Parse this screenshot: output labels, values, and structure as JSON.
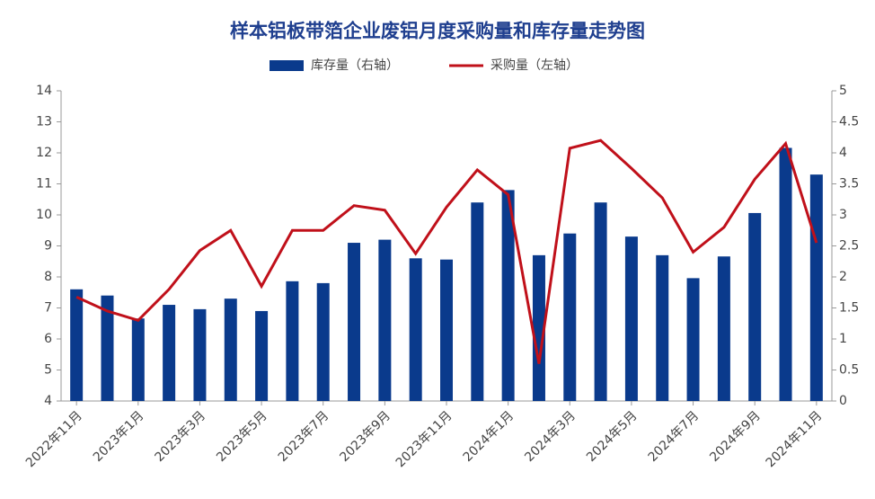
{
  "chart_data": {
    "type": "bar-line",
    "title": "样本铝板带箔企业废铝月度采购量和库存量走势图",
    "categories": [
      "2022年11月",
      null,
      "2023年1月",
      null,
      "2023年3月",
      null,
      "2023年5月",
      null,
      "2023年7月",
      null,
      "2023年9月",
      null,
      "2023年11月",
      null,
      "2024年1月",
      null,
      "2024年3月",
      null,
      "2024年5月",
      null,
      "2024年7月",
      null,
      "2024年9月",
      null,
      "2024年11月"
    ],
    "series": [
      {
        "name": "库存量（右轴）",
        "type": "bar",
        "axis": "y2",
        "color": "#0a3a8c",
        "values": [
          1.8,
          1.7,
          1.33,
          1.55,
          1.48,
          1.65,
          1.45,
          1.93,
          1.9,
          2.55,
          2.6,
          2.3,
          2.28,
          3.2,
          3.4,
          2.35,
          2.7,
          3.2,
          2.65,
          2.35,
          1.98,
          2.33,
          3.03,
          4.08,
          3.65
        ]
      },
      {
        "name": "采购量（左轴）",
        "type": "line",
        "axis": "y",
        "color": "#c0101a",
        "values": [
          7.35,
          6.9,
          6.6,
          7.6,
          8.85,
          9.5,
          7.7,
          9.5,
          9.5,
          10.3,
          10.15,
          8.75,
          10.25,
          11.45,
          10.65,
          5.2,
          12.15,
          12.4,
          11.5,
          10.55,
          8.8,
          9.6,
          11.15,
          12.3,
          9.1
        ]
      }
    ],
    "ylim": [
      4,
      14
    ],
    "yticks": [
      4,
      5,
      6,
      7,
      8,
      9,
      10,
      11,
      12,
      13,
      14
    ],
    "y2lim": [
      0,
      5
    ],
    "y2ticks": [
      0,
      0.5,
      1,
      1.5,
      2,
      2.5,
      3,
      3.5,
      4,
      4.5,
      5
    ],
    "legend": "top"
  }
}
